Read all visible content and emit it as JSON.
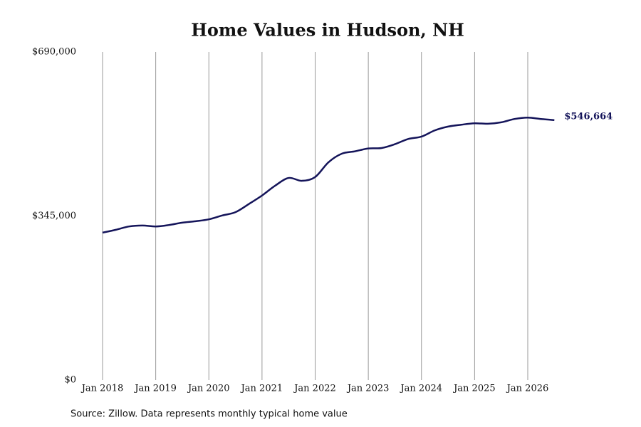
{
  "chart_data": {
    "type": "line",
    "title": "Home Values in Hudson, NH",
    "source": "Source: Zillow. Data represents monthly typical home value",
    "x": [
      "2018-01",
      "2018-04",
      "2018-07",
      "2018-10",
      "2019-01",
      "2019-04",
      "2019-07",
      "2019-10",
      "2020-01",
      "2020-04",
      "2020-07",
      "2020-10",
      "2021-01",
      "2021-04",
      "2021-07",
      "2021-10",
      "2022-01",
      "2022-04",
      "2022-07",
      "2022-10",
      "2023-01",
      "2023-04",
      "2023-07",
      "2023-10",
      "2024-01",
      "2024-04",
      "2024-07",
      "2024-10",
      "2025-01",
      "2025-04",
      "2025-07",
      "2025-10",
      "2026-01",
      "2026-04",
      "2026-07"
    ],
    "series": [
      {
        "name": "Typical home value",
        "color": "#14145a",
        "values": [
          310000,
          316000,
          323000,
          325000,
          323000,
          326000,
          331000,
          334000,
          338000,
          346000,
          353000,
          370000,
          388000,
          409000,
          425000,
          419000,
          427000,
          458000,
          476000,
          481000,
          487000,
          488000,
          496000,
          507000,
          512000,
          525000,
          533000,
          537000,
          540000,
          539000,
          542000,
          549000,
          552000,
          549000,
          546664
        ],
        "value_labels": [
          null,
          null,
          null,
          null,
          null,
          null,
          null,
          null,
          null,
          null,
          null,
          null,
          null,
          null,
          null,
          null,
          null,
          null,
          null,
          null,
          null,
          null,
          null,
          null,
          null,
          null,
          null,
          null,
          null,
          null,
          null,
          null,
          null,
          null,
          "$546,664"
        ]
      }
    ],
    "xticks": [
      {
        "value": "2018-01",
        "label": "Jan 2018"
      },
      {
        "value": "2019-01",
        "label": "Jan 2019"
      },
      {
        "value": "2020-01",
        "label": "Jan 2020"
      },
      {
        "value": "2021-01",
        "label": "Jan 2021"
      },
      {
        "value": "2022-01",
        "label": "Jan 2022"
      },
      {
        "value": "2023-01",
        "label": "Jan 2023"
      },
      {
        "value": "2024-01",
        "label": "Jan 2024"
      },
      {
        "value": "2025-01",
        "label": "Jan 2025"
      },
      {
        "value": "2026-01",
        "label": "Jan 2026"
      }
    ],
    "ylim": [
      0,
      690000
    ],
    "yticks": [
      {
        "value": 0,
        "label": "$0"
      },
      {
        "value": 345000,
        "label": "$345,000"
      },
      {
        "value": 690000,
        "label": "$690,000"
      }
    ],
    "grid": "x"
  }
}
